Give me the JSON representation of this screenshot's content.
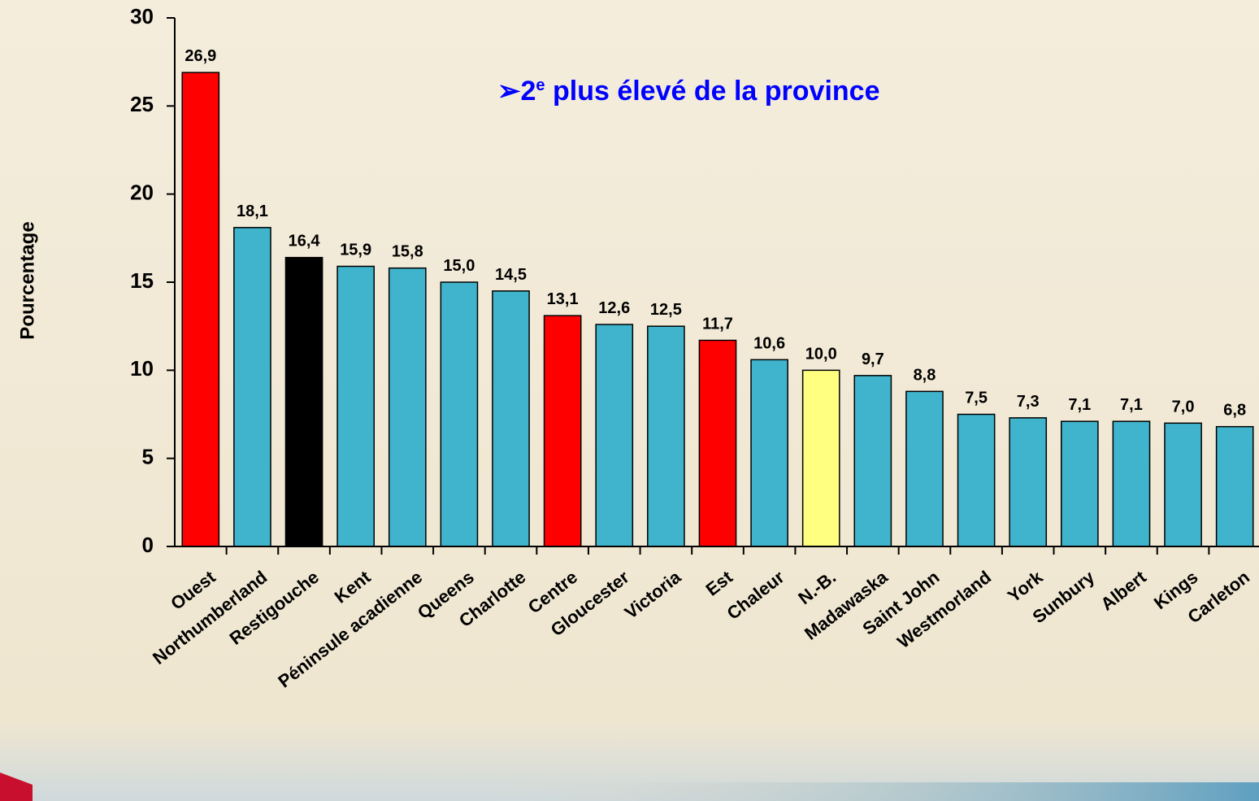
{
  "chart_data": {
    "type": "bar",
    "annotation": [
      "➢2",
      "e",
      " plus élevé de la province"
    ],
    "ylabel": "Pourcentage",
    "categories": [
      "Ouest",
      "Northumberland",
      "Restigouche",
      "Kent",
      "Péninsule acadienne",
      "Queens",
      "Charlotte",
      "Centre",
      "Gloucester",
      "Victoria",
      "Est",
      "Chaleur",
      "N.-B.",
      "Madawaska",
      "Saint John",
      "Westmorland",
      "York",
      "Sunbury",
      "Albert",
      "Kings",
      "Carleton"
    ],
    "values": [
      26.9,
      18.1,
      16.4,
      15.9,
      15.8,
      15.0,
      14.5,
      13.1,
      12.6,
      12.5,
      11.7,
      10.6,
      10.0,
      9.7,
      8.8,
      7.5,
      7.3,
      7.1,
      7.1,
      7.0,
      6.8
    ],
    "value_labels": [
      "26,9",
      "18,1",
      "16,4",
      "15,9",
      "15,8",
      "15,0",
      "14,5",
      "13,1",
      "12,6",
      "12,5",
      "11,7",
      "10,6",
      "10,0",
      "9,7",
      "8,8",
      "7,5",
      "7,3",
      "7,1",
      "7,1",
      "7,0",
      "6,8"
    ],
    "colors": [
      "#ff0000",
      "#40b4cc",
      "#000000",
      "#40b4cc",
      "#40b4cc",
      "#40b4cc",
      "#40b4cc",
      "#ff0000",
      "#40b4cc",
      "#40b4cc",
      "#ff0000",
      "#40b4cc",
      "#ffff80",
      "#40b4cc",
      "#40b4cc",
      "#40b4cc",
      "#40b4cc",
      "#40b4cc",
      "#40b4cc",
      "#40b4cc",
      "#40b4cc"
    ],
    "ylim": [
      0,
      30
    ],
    "yticks": [
      0,
      5,
      10,
      15,
      20,
      25,
      30
    ]
  }
}
